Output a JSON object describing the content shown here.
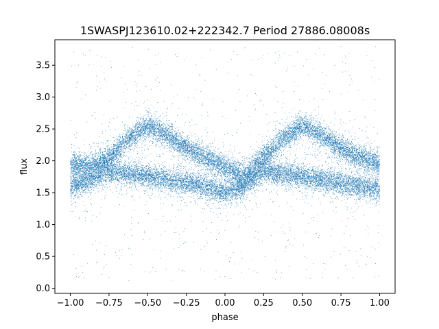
{
  "chart_data": {
    "type": "scatter",
    "title": "1SWASPJ123610.02+222342.7 Period 27886.08008s",
    "xlabel": "phase",
    "ylabel": "flux",
    "xlim": [
      -1.1,
      1.1
    ],
    "ylim": [
      -0.08,
      3.9
    ],
    "xticks": [
      -1.0,
      -0.75,
      -0.5,
      -0.25,
      0.0,
      0.25,
      0.5,
      0.75,
      1.0
    ],
    "xtick_labels": [
      "−1.00",
      "−0.75",
      "−0.50",
      "−0.25",
      "0.00",
      "0.25",
      "0.50",
      "0.75",
      "1.00"
    ],
    "yticks": [
      0.0,
      0.5,
      1.0,
      1.5,
      2.0,
      2.5,
      3.0,
      3.5
    ],
    "ytick_labels": [
      "0.0",
      "0.5",
      "1.0",
      "1.5",
      "2.0",
      "2.5",
      "3.0",
      "3.5"
    ],
    "grid": false,
    "marker_color": "#1f77b4",
    "series": [
      {
        "x_range": [
          -1.0,
          1.0
        ],
        "approx_point_count": 22000,
        "upper_branch": {
          "x": [
            -1.0,
            -0.875,
            -0.75,
            -0.625,
            -0.5,
            -0.375,
            -0.25,
            -0.125,
            0.0,
            0.125,
            0.25,
            0.375,
            0.5,
            0.625,
            0.75,
            0.875,
            1.0
          ],
          "y": [
            1.95,
            1.9,
            2.05,
            2.35,
            2.55,
            2.4,
            2.2,
            2.05,
            1.9,
            1.75,
            2.05,
            2.35,
            2.55,
            2.4,
            2.2,
            2.05,
            1.95
          ]
        },
        "lower_branch": {
          "x": [
            -1.0,
            -0.875,
            -0.75,
            -0.625,
            -0.5,
            -0.375,
            -0.25,
            -0.125,
            0.0,
            0.125,
            0.25,
            0.375,
            0.5,
            0.625,
            0.75,
            0.875,
            1.0
          ],
          "y": [
            1.6,
            1.7,
            1.85,
            1.8,
            1.75,
            1.7,
            1.65,
            1.6,
            1.5,
            1.6,
            1.85,
            1.8,
            1.75,
            1.7,
            1.65,
            1.6,
            1.55
          ]
        },
        "scatter_spread": 0.15,
        "outlier_range": [
          0.1,
          3.8
        ]
      }
    ]
  }
}
